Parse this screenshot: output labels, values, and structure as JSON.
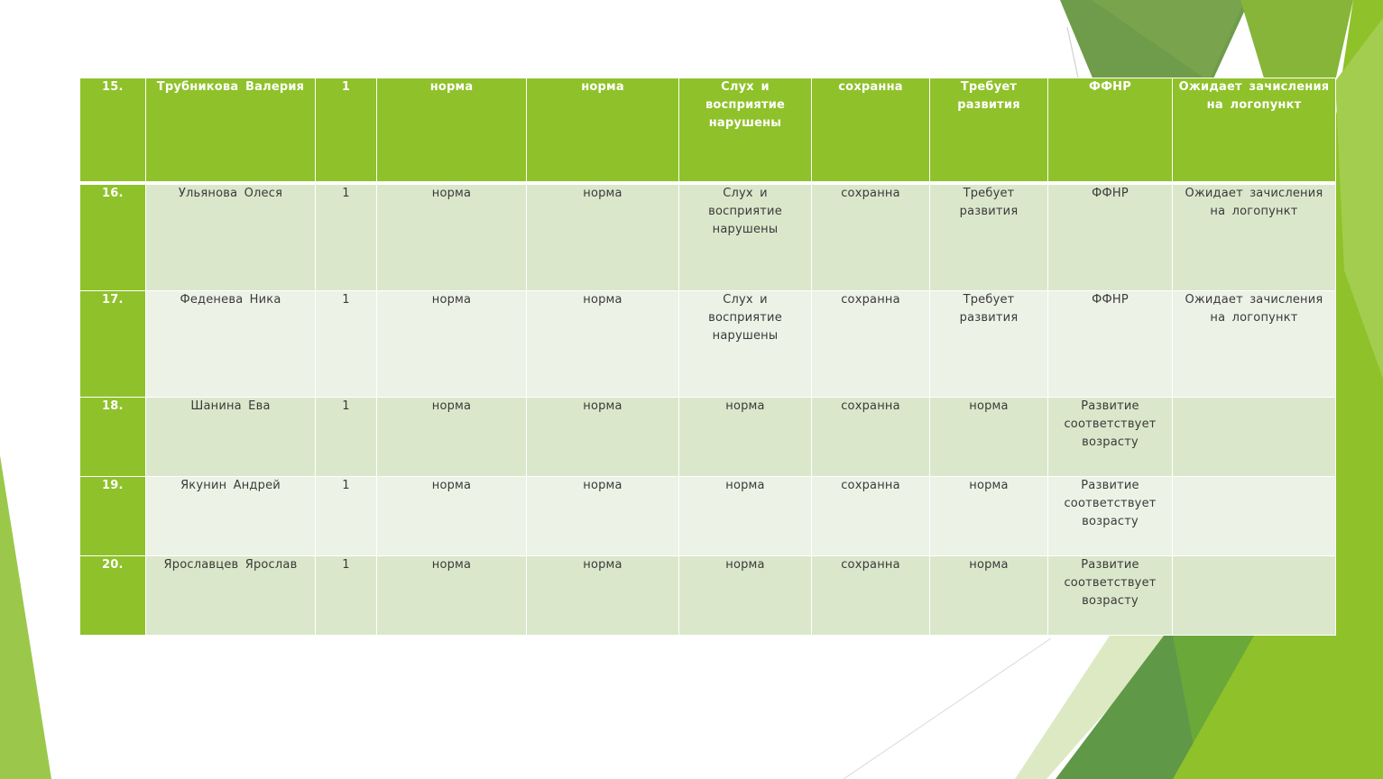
{
  "colors": {
    "header_bg": "#8fc12a",
    "row_odd_bg": "#dbe7cb",
    "row_even_bg": "#edf2e7",
    "accent_green": "#8fc12a"
  },
  "rows": [
    {
      "num": "15.",
      "name": "Трубникова  Валерия",
      "c1": "1",
      "c2": "норма",
      "c3": "норма",
      "c4": "Слух  и восприятие нарушены",
      "c5": "сохранна",
      "c6": "Требует развития",
      "c7": "ФФНР",
      "c8": "Ожидает  зачисления на  логопункт"
    },
    {
      "num": "16.",
      "name": "Ульянова  Олеся",
      "c1": "1",
      "c2": "норма",
      "c3": "норма",
      "c4": "Слух  и восприятие нарушены",
      "c5": "сохранна",
      "c6": "Требует развития",
      "c7": "ФФНР",
      "c8": "Ожидает  зачисления на  логопункт"
    },
    {
      "num": "17.",
      "name": "Феденева  Ника",
      "c1": "1",
      "c2": "норма",
      "c3": "норма",
      "c4": "Слух  и восприятие нарушены",
      "c5": "сохранна",
      "c6": "Требует развития",
      "c7": "ФФНР",
      "c8": "Ожидает  зачисления на  логопункт"
    },
    {
      "num": "18.",
      "name": "Шанина  Ева",
      "c1": "1",
      "c2": "норма",
      "c3": "норма",
      "c4": "норма",
      "c5": "сохранна",
      "c6": "норма",
      "c7": "Развитие соответствует возрасту",
      "c8": ""
    },
    {
      "num": "19.",
      "name": "Якунин  Андрей",
      "c1": "1",
      "c2": "норма",
      "c3": "норма",
      "c4": "норма",
      "c5": "сохранна",
      "c6": "норма",
      "c7": "Развитие соответствует возрасту",
      "c8": ""
    },
    {
      "num": "20.",
      "name": "Ярославцев  Ярослав",
      "c1": "1",
      "c2": "норма",
      "c3": "норма",
      "c4": "норма",
      "c5": "сохранна",
      "c6": "норма",
      "c7": "Развитие соответствует возрасту",
      "c8": ""
    }
  ]
}
